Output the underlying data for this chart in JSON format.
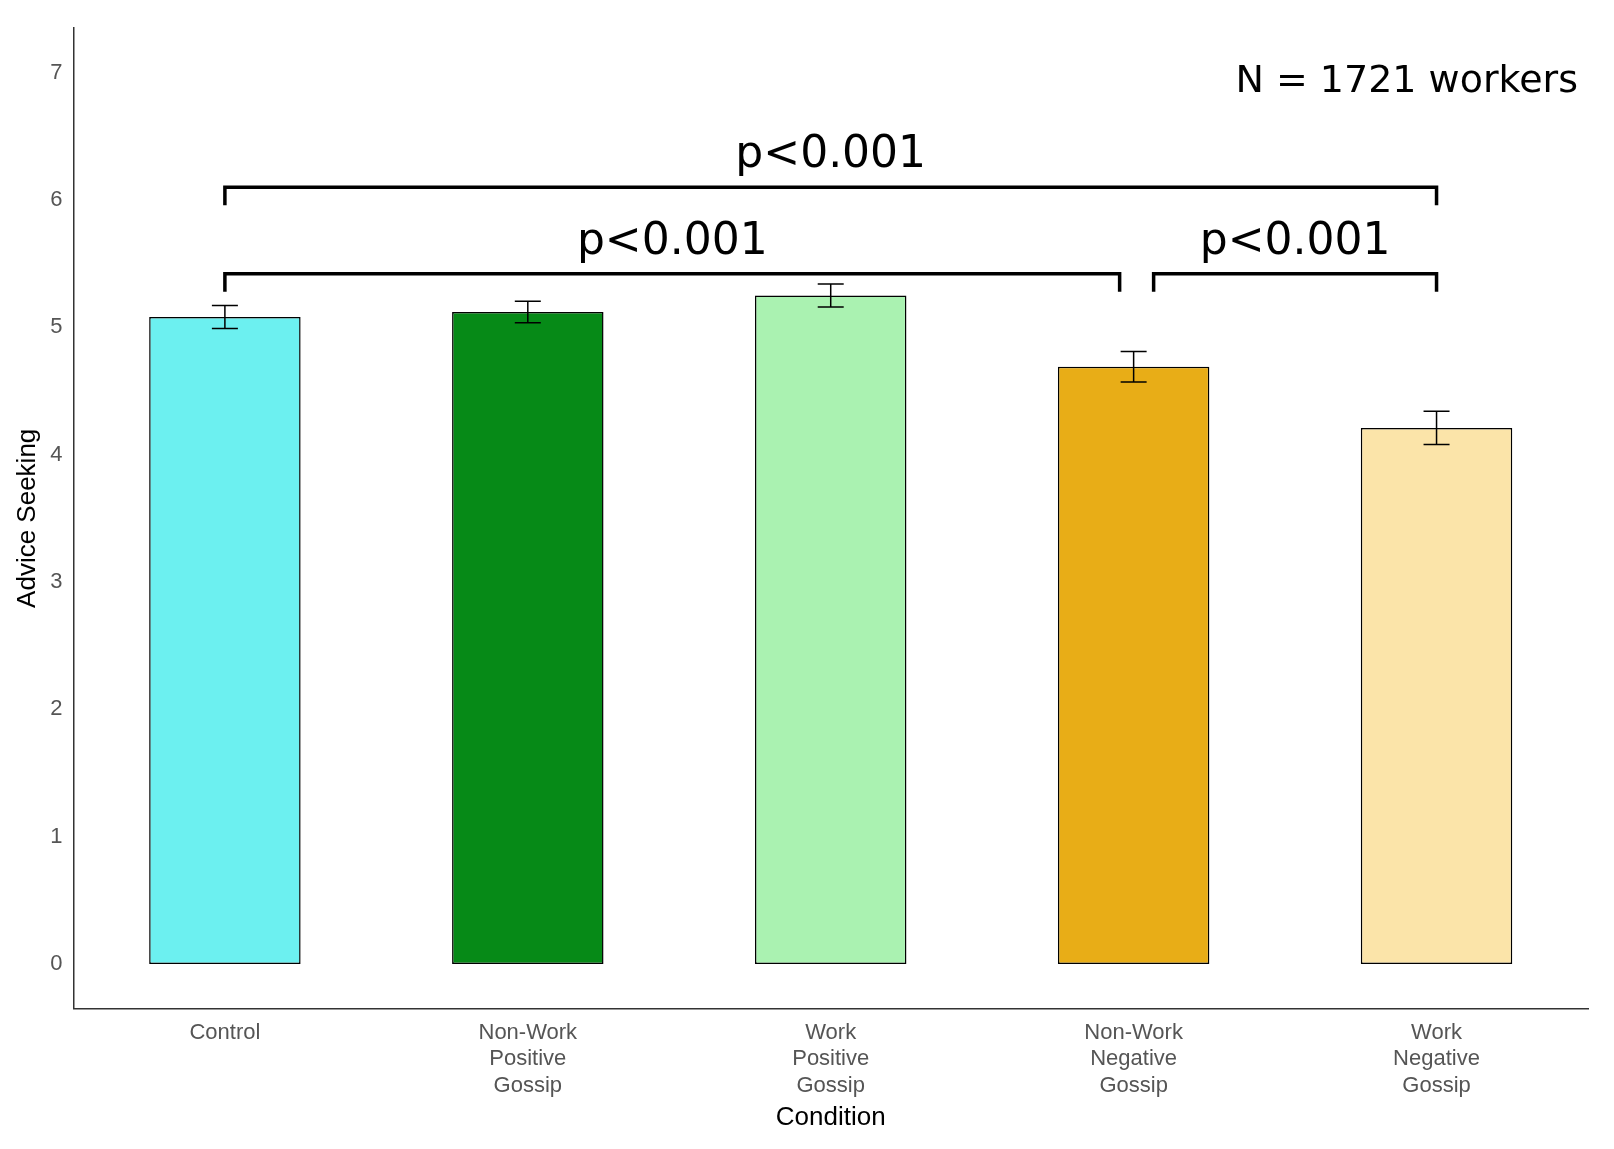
{
  "chart_data": {
    "type": "bar",
    "xlabel": "Condition",
    "ylabel": "Advice Seeking",
    "categories": [
      "Control",
      "Non-Work Positive Gossip",
      "Work Positive Gossip",
      "Non-Work Negative Gossip",
      "Work Negative Gossip"
    ],
    "values": [
      5.08,
      5.12,
      5.25,
      4.69,
      4.21
    ],
    "errors": [
      0.09,
      0.085,
      0.09,
      0.12,
      0.13
    ],
    "colors": [
      "#6cf0f0",
      "#068a17",
      "#aaf2b1",
      "#e8ad17",
      "#fbe4a9"
    ],
    "ylim": [
      -0.35,
      7.35
    ],
    "yticks": [
      0,
      1,
      2,
      3,
      4,
      5,
      6,
      7
    ],
    "grid": false,
    "legend": false,
    "annotations": [
      "N = 1721 workers",
      "p<0.001",
      "p<0.001",
      "p<0.001"
    ]
  }
}
